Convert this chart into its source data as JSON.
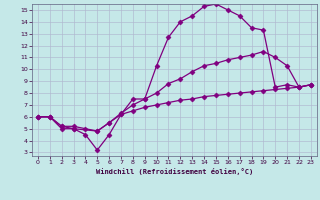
{
  "xlabel": "Windchill (Refroidissement éolien,°C)",
  "xlim": [
    -0.5,
    23.5
  ],
  "ylim": [
    2.7,
    15.5
  ],
  "xticks": [
    0,
    1,
    2,
    3,
    4,
    5,
    6,
    7,
    8,
    9,
    10,
    11,
    12,
    13,
    14,
    15,
    16,
    17,
    18,
    19,
    20,
    21,
    22,
    23
  ],
  "yticks": [
    3,
    4,
    5,
    6,
    7,
    8,
    9,
    10,
    11,
    12,
    13,
    14,
    15
  ],
  "bg_color": "#c5e8e8",
  "grid_color": "#b0b8d0",
  "line_color": "#800080",
  "curve1_x": [
    0,
    1,
    2,
    3,
    4,
    5,
    6,
    7,
    8,
    9,
    10,
    11,
    12,
    13,
    14,
    15,
    16,
    17,
    18,
    19,
    20,
    21,
    22,
    23
  ],
  "curve1_y": [
    6.0,
    6.0,
    5.0,
    5.0,
    4.5,
    3.2,
    4.5,
    6.2,
    7.5,
    7.5,
    10.3,
    12.7,
    14.0,
    14.5,
    15.3,
    15.5,
    15.0,
    14.5,
    13.5,
    13.3,
    8.5,
    8.7,
    8.5,
    8.7
  ],
  "curve2_x": [
    0,
    1,
    2,
    3,
    5,
    6,
    7,
    8,
    9,
    10,
    11,
    12,
    13,
    14,
    15,
    16,
    17,
    18,
    19,
    20,
    21,
    22,
    23
  ],
  "curve2_y": [
    6.0,
    6.0,
    5.2,
    5.0,
    4.8,
    5.5,
    6.3,
    7.0,
    7.5,
    8.0,
    8.8,
    9.2,
    9.8,
    10.3,
    10.5,
    10.8,
    11.0,
    11.2,
    11.5,
    11.0,
    10.3,
    8.5,
    8.7
  ],
  "curve3_x": [
    0,
    1,
    2,
    3,
    4,
    5,
    6,
    7,
    8,
    9,
    10,
    11,
    12,
    13,
    14,
    15,
    16,
    17,
    18,
    19,
    20,
    21,
    22,
    23
  ],
  "curve3_y": [
    6.0,
    6.0,
    5.2,
    5.2,
    5.0,
    4.8,
    5.5,
    6.2,
    6.5,
    6.8,
    7.0,
    7.2,
    7.4,
    7.5,
    7.7,
    7.8,
    7.9,
    8.0,
    8.1,
    8.2,
    8.3,
    8.4,
    8.5,
    8.7
  ],
  "marker": "D",
  "markersize": 2.5,
  "linewidth": 0.9
}
